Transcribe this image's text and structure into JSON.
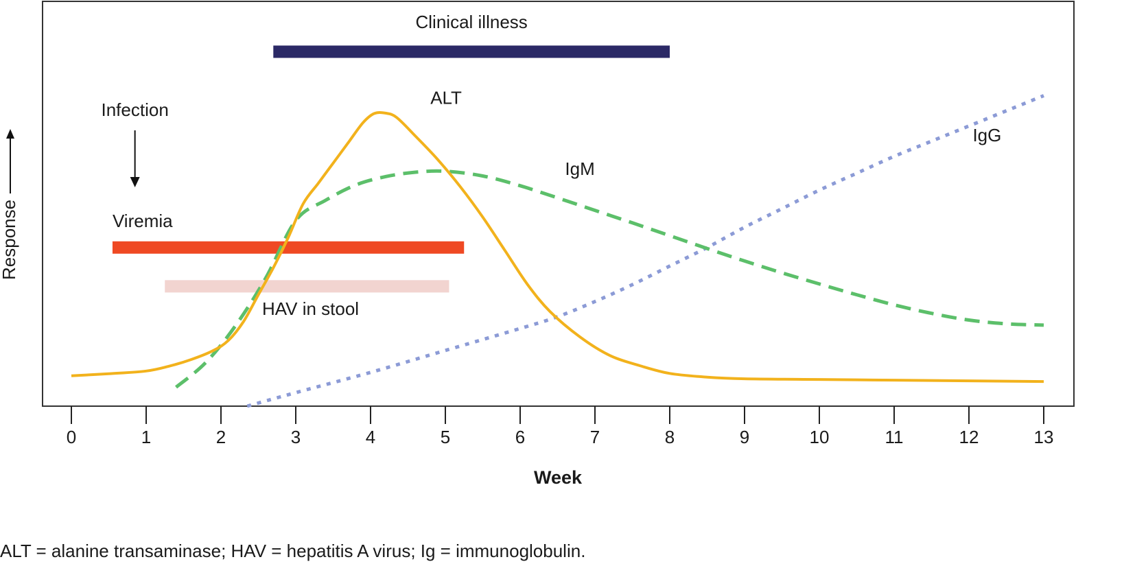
{
  "chart_data": {
    "type": "line",
    "title": "",
    "xlabel": "Week",
    "ylabel": "Response",
    "ylabel_arrow": "up-arrow",
    "xlim": [
      -0.4,
      13.4
    ],
    "ylim": [
      0,
      100
    ],
    "x_ticks": [
      0,
      1,
      2,
      3,
      4,
      5,
      6,
      7,
      8,
      9,
      10,
      11,
      12,
      13
    ],
    "grid": false,
    "legend": "none (inline labels)",
    "series": [
      {
        "name": "ALT",
        "style": "solid",
        "color": "#f2b21c",
        "points": [
          [
            0,
            9
          ],
          [
            0.5,
            9.6
          ],
          [
            1,
            10.4
          ],
          [
            1.3,
            11.8
          ],
          [
            1.6,
            13.8
          ],
          [
            1.9,
            16.5
          ],
          [
            2.1,
            19.5
          ],
          [
            2.3,
            25
          ],
          [
            2.5,
            33
          ],
          [
            2.7,
            41
          ],
          [
            2.9,
            50
          ],
          [
            3.1,
            60
          ],
          [
            3.3,
            66
          ],
          [
            3.5,
            72
          ],
          [
            3.7,
            78
          ],
          [
            3.9,
            84
          ],
          [
            4.05,
            86.7
          ],
          [
            4.2,
            86.8
          ],
          [
            4.35,
            85.5
          ],
          [
            4.6,
            80
          ],
          [
            4.9,
            73
          ],
          [
            5.2,
            65
          ],
          [
            5.5,
            56
          ],
          [
            5.8,
            46
          ],
          [
            6.1,
            36
          ],
          [
            6.4,
            28
          ],
          [
            6.8,
            20.5
          ],
          [
            7.2,
            15
          ],
          [
            7.6,
            12
          ],
          [
            8,
            9.7
          ],
          [
            8.5,
            8.6
          ],
          [
            9,
            8.1
          ],
          [
            10,
            7.9
          ],
          [
            11,
            7.7
          ],
          [
            12,
            7.5
          ],
          [
            13,
            7.3
          ]
        ]
      },
      {
        "name": "IgM",
        "style": "dashed",
        "color": "#5cbf6a",
        "points": [
          [
            1.4,
            5.6
          ],
          [
            1.8,
            13
          ],
          [
            2.2,
            24
          ],
          [
            2.6,
            38
          ],
          [
            3,
            55
          ],
          [
            3.4,
            61
          ],
          [
            3.8,
            65.5
          ],
          [
            4.2,
            68
          ],
          [
            4.6,
            69.3
          ],
          [
            5,
            69.6
          ],
          [
            5.5,
            68.2
          ],
          [
            6,
            65.3
          ],
          [
            6.5,
            61.7
          ],
          [
            7,
            58
          ],
          [
            7.5,
            54.3
          ],
          [
            8,
            50.5
          ],
          [
            8.5,
            46.7
          ],
          [
            9,
            43
          ],
          [
            9.5,
            39.5
          ],
          [
            10,
            36.2
          ],
          [
            10.5,
            33
          ],
          [
            11,
            30
          ],
          [
            11.5,
            27.5
          ],
          [
            12,
            25.5
          ],
          [
            12.5,
            24.4
          ],
          [
            13,
            24
          ]
        ]
      },
      {
        "name": "IgG",
        "style": "dotted",
        "color": "#8c9bd6",
        "points": [
          [
            2.35,
            0
          ],
          [
            3,
            4
          ],
          [
            4,
            10
          ],
          [
            5,
            16.5
          ],
          [
            6,
            23
          ],
          [
            6.5,
            26.5
          ],
          [
            7,
            31
          ],
          [
            7.5,
            36
          ],
          [
            8,
            41.5
          ],
          [
            8.5,
            47
          ],
          [
            9,
            53
          ],
          [
            9.5,
            58.5
          ],
          [
            10,
            64
          ],
          [
            10.5,
            69
          ],
          [
            11,
            74
          ],
          [
            11.5,
            78.5
          ],
          [
            12,
            83
          ],
          [
            12.5,
            87.5
          ],
          [
            13,
            92
          ]
        ]
      }
    ],
    "bars": [
      {
        "name": "Clinical illness",
        "color": "#2b2966",
        "start_week": 2.7,
        "end_week": 8.0,
        "level": 105
      },
      {
        "name": "Viremia",
        "color": "#ef4923",
        "start_week": 0.55,
        "end_week": 5.25,
        "level": 47
      },
      {
        "name": "HAV in stool",
        "color": "#f2d4d0",
        "start_week": 1.25,
        "end_week": 5.05,
        "level": 35.5
      }
    ],
    "annotations": [
      {
        "text": "Clinical illness",
        "x": 5.35,
        "y": 112
      },
      {
        "text": "ALT",
        "x": 4.8,
        "y": 89.5
      },
      {
        "text": "IgM",
        "x": 6.6,
        "y": 68.5
      },
      {
        "text": "IgG",
        "x": 12.05,
        "y": 78.5
      },
      {
        "text": "Viremia",
        "x": 0.55,
        "y": 53
      },
      {
        "text": "HAV in stool",
        "x": 2.55,
        "y": 27
      },
      {
        "text": "Infection",
        "x": 0.85,
        "y": 86,
        "arrow": "down-arrow",
        "arrow_target_week": 0.85
      }
    ],
    "caption": "ALT = alanine transaminase; HAV = hepatitis A virus; Ig = immunoglobulin."
  }
}
